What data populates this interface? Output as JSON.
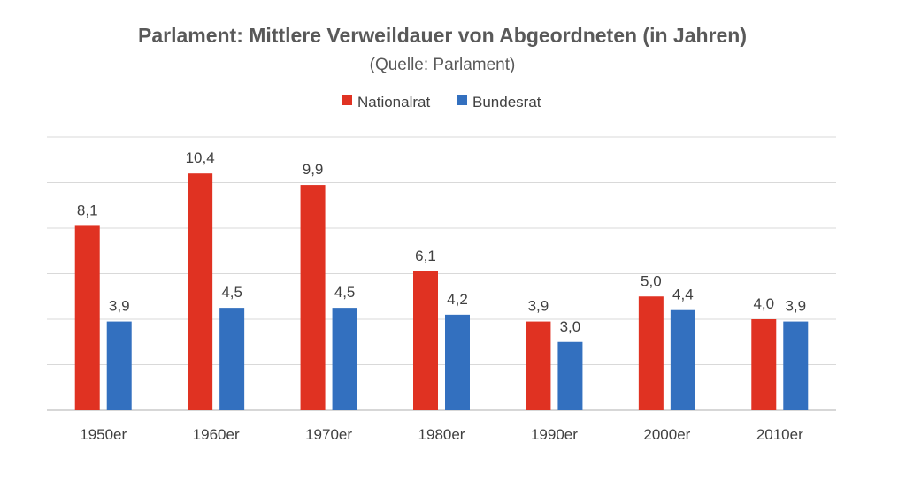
{
  "chart_data": {
    "type": "bar",
    "title": "Parlament: Mittlere Verweildauer von Abgeordneten (in Jahren)",
    "subtitle": "(Quelle: Parlament)",
    "categories": [
      "1950er",
      "1960er",
      "1970er",
      "1980er",
      "1990er",
      "2000er",
      "2010er"
    ],
    "series": [
      {
        "name": "Nationalrat",
        "color": "#e03222",
        "values": [
          8.1,
          10.4,
          9.9,
          6.1,
          3.9,
          5.0,
          4.0
        ],
        "labels": [
          "8,1",
          "10,4",
          "9,9",
          "6,1",
          "3,9",
          "5,0",
          "4,0"
        ]
      },
      {
        "name": "Bundesrat",
        "color": "#3370bf",
        "values": [
          3.9,
          4.5,
          4.5,
          4.2,
          3.0,
          4.4,
          3.9
        ],
        "labels": [
          "3,9",
          "4,5",
          "4,5",
          "4,2",
          "3,0",
          "4,4",
          "3,9"
        ]
      }
    ],
    "ylim": [
      0,
      12
    ],
    "y_gridlines": [
      0,
      2,
      4,
      6,
      8,
      10,
      12
    ],
    "y_tick_labels_shown": false,
    "legend_position": "top",
    "grid": true
  }
}
